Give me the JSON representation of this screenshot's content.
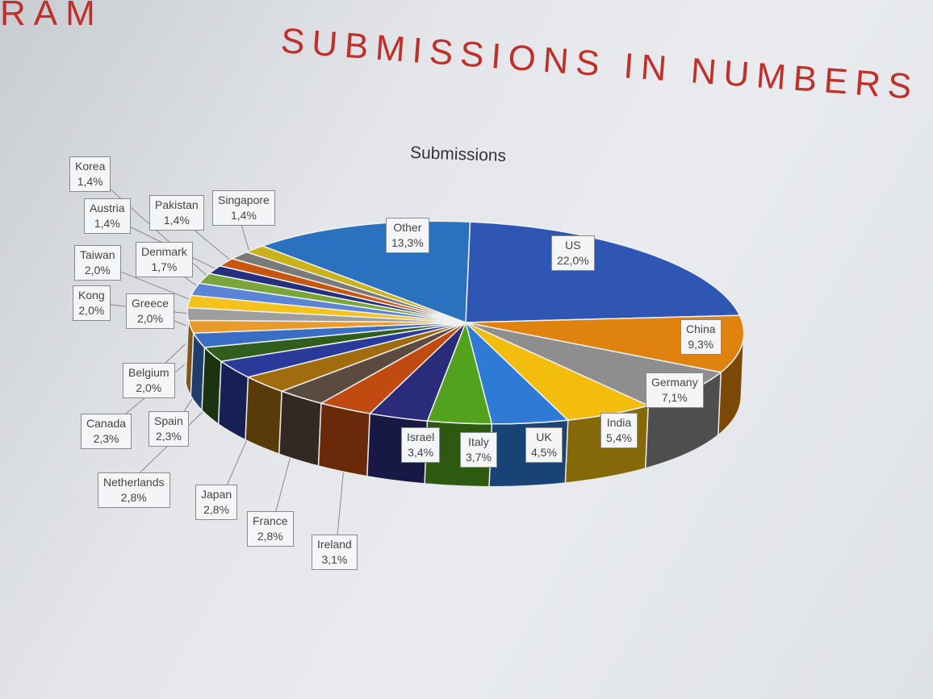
{
  "slide": {
    "logo_fragment": "RAM",
    "title": "SUBMISSIONS IN NUMBERS"
  },
  "colors": {
    "title": "#c0302a"
  },
  "chart_data": {
    "type": "pie",
    "title": "Submissions",
    "style": "3d",
    "slices": [
      {
        "label": "US",
        "value": 22.0,
        "display": "22,0%",
        "color": "#2f56b3"
      },
      {
        "label": "China",
        "value": 9.3,
        "display": "9,3%",
        "color": "#e0820e"
      },
      {
        "label": "Germany",
        "value": 7.1,
        "display": "7,1%",
        "color": "#8e8e8e"
      },
      {
        "label": "India",
        "value": 5.4,
        "display": "5,4%",
        "color": "#f2bd0c"
      },
      {
        "label": "UK",
        "value": 4.5,
        "display": "4,5%",
        "color": "#2e7ad4"
      },
      {
        "label": "Italy",
        "value": 3.7,
        "display": "3,7%",
        "color": "#52a21e"
      },
      {
        "label": "Israel",
        "value": 3.4,
        "display": "3,4%",
        "color": "#2b2b7c"
      },
      {
        "label": "Ireland",
        "value": 3.1,
        "display": "3,1%",
        "color": "#c04a10"
      },
      {
        "label": "France",
        "value": 2.8,
        "display": "2,8%",
        "color": "#5a4a40"
      },
      {
        "label": "Japan",
        "value": 2.8,
        "display": "2,8%",
        "color": "#a06c0e"
      },
      {
        "label": "Netherlands",
        "value": 2.8,
        "display": "2,8%",
        "color": "#2a3a9a"
      },
      {
        "label": "Spain",
        "value": 2.3,
        "display": "2,3%",
        "color": "#2f5e1e"
      },
      {
        "label": "Canada",
        "value": 2.3,
        "display": "2,3%",
        "color": "#3a6ec4"
      },
      {
        "label": "Belgium",
        "value": 2.0,
        "display": "2,0%",
        "color": "#e89a2a"
      },
      {
        "label": "Greece",
        "value": 2.0,
        "display": "2,0%",
        "color": "#9e9e9e"
      },
      {
        "label": "Kong",
        "value": 2.0,
        "display": "2,0%",
        "color": "#f4c21a"
      },
      {
        "label": "Taiwan",
        "value": 2.0,
        "display": "2,0%",
        "color": "#5b84d6"
      },
      {
        "label": "Denmark",
        "value": 1.7,
        "display": "1,7%",
        "color": "#78a63a"
      },
      {
        "label": "Korea",
        "value": 1.4,
        "display": "1,4%",
        "color": "#23307e"
      },
      {
        "label": "Austria",
        "value": 1.4,
        "display": "1,4%",
        "color": "#c8560e"
      },
      {
        "label": "Pakistan",
        "value": 1.4,
        "display": "1,4%",
        "color": "#7a7a7a"
      },
      {
        "label": "Singapore",
        "value": 1.4,
        "display": "1,4%",
        "color": "#c9b21a"
      },
      {
        "label": "Other",
        "value": 13.3,
        "display": "13,3%",
        "color": "#2a72c0"
      }
    ]
  }
}
